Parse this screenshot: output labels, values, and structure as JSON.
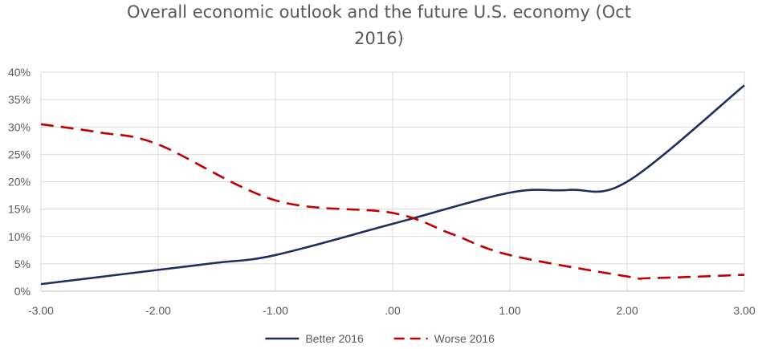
{
  "chart_data": {
    "type": "line",
    "title": "Overall economic outlook and the future U.S. economy (Oct 2016)",
    "title_lines": [
      "Overall economic outlook and the future U.S. economy (Oct",
      "2016)"
    ],
    "x": [
      -3.0,
      -2.0,
      -1.0,
      0.0,
      1.0,
      1.5,
      2.0,
      3.0
    ],
    "xlim": [
      -3.0,
      3.0
    ],
    "ylim": [
      0,
      0.4
    ],
    "x_ticks": [
      -3,
      -2,
      -1,
      0,
      1,
      2,
      3
    ],
    "x_tick_labels": [
      "-3.00",
      "-2.00",
      "-1.00",
      ".00",
      "1.00",
      "2.00",
      "3.00"
    ],
    "y_ticks": [
      0,
      0.05,
      0.1,
      0.15,
      0.2,
      0.25,
      0.3,
      0.35,
      0.4
    ],
    "y_tick_labels": [
      "0%",
      "5%",
      "10%",
      "15%",
      "20%",
      "25%",
      "30%",
      "35%",
      "40%"
    ],
    "xlabel": "",
    "ylabel": "",
    "grid": true,
    "smooth": true,
    "legend_position": "bottom",
    "series": [
      {
        "name": "Better 2016",
        "color": "#1f2d5f",
        "dash": "solid",
        "x": [
          -3.0,
          -2.0,
          -1.5,
          -1.0,
          0.0,
          1.0,
          1.5,
          2.0,
          3.0
        ],
        "values": [
          0.013,
          0.039,
          0.052,
          0.066,
          0.123,
          0.18,
          0.185,
          0.2,
          0.376
        ]
      },
      {
        "name": "Worse 2016",
        "color": "#c00000",
        "dash": "dashed",
        "x": [
          -3.0,
          -2.5,
          -2.0,
          -1.0,
          0.0,
          0.5,
          1.0,
          2.0,
          2.2,
          3.0
        ],
        "values": [
          0.305,
          0.29,
          0.268,
          0.166,
          0.143,
          0.105,
          0.066,
          0.027,
          0.024,
          0.03
        ]
      }
    ]
  }
}
